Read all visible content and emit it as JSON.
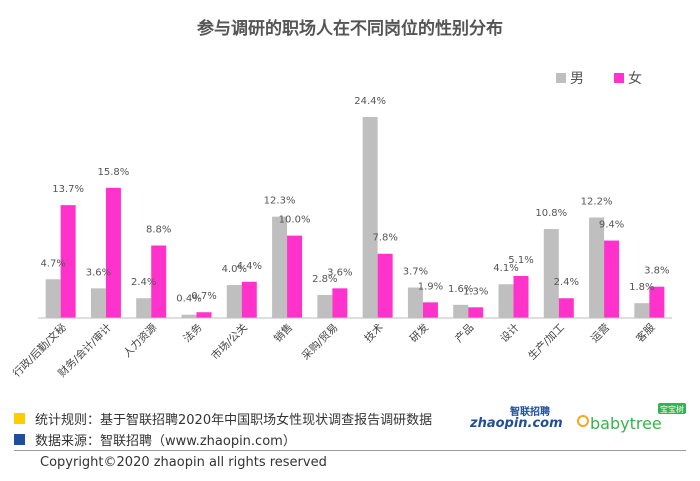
{
  "chart_data": {
    "type": "bar",
    "title": "参与调研的职场人在不同岗位的性别分布",
    "categories": [
      "行政/后勤/文秘",
      "财务/会计/审计",
      "人力资源",
      "法务",
      "市场/公关",
      "销售",
      "采购/贸易",
      "技术",
      "研发",
      "产品",
      "设计",
      "生产/加工",
      "运营",
      "客服"
    ],
    "series": [
      {
        "name": "男",
        "color": "#bfbfbf",
        "values": [
          4.7,
          3.6,
          2.4,
          0.4,
          4.0,
          12.3,
          2.8,
          24.4,
          3.7,
          1.6,
          4.1,
          10.8,
          12.2,
          1.8
        ]
      },
      {
        "name": "女",
        "color": "#ff33cc",
        "values": [
          13.7,
          15.8,
          8.8,
          0.7,
          4.4,
          10.0,
          3.6,
          7.8,
          1.9,
          1.3,
          5.1,
          2.4,
          9.4,
          3.8
        ]
      }
    ],
    "value_suffix": "%",
    "legend_position": "top-right",
    "grid": false
  },
  "footer": {
    "rule_text": "统计规则：基于智联招聘2020年中国职场女性现状调查报告调研数据",
    "source_text": "数据来源：智联招聘（www.zhaopin.com）",
    "rule_color": "#ffcc00",
    "source_color": "#1f4e9c",
    "copyright": "Copyright©2020 zhaopin all rights reserved"
  },
  "logos": {
    "zhaopin_cn": "智联招聘",
    "zhaopin_en": "zhaopin.com",
    "babytree_en": "babytree",
    "babytree_cn": "宝宝树"
  }
}
